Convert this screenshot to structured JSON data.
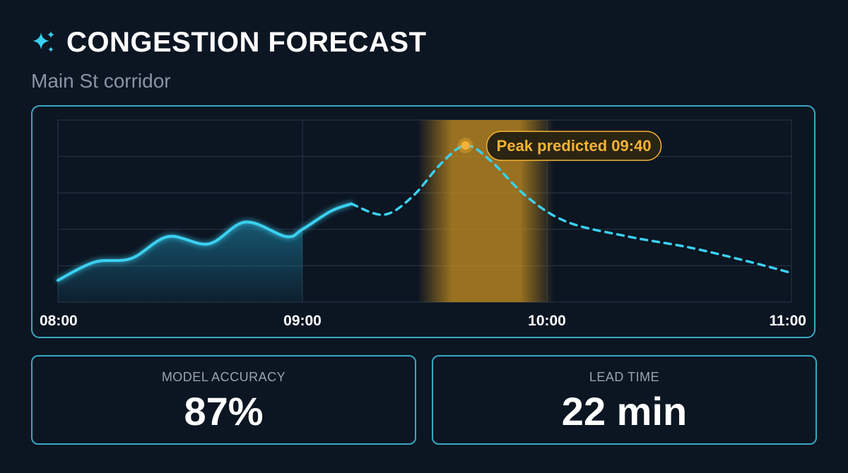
{
  "header": {
    "title": "CONGESTION FORECAST",
    "subtitle": "Main St corridor",
    "icon": "sparkle-icon"
  },
  "colors": {
    "background": "#0c1522",
    "accent": "#3ad0f0",
    "highlight": "#f5b335",
    "border": "#3aa7c4"
  },
  "chart_data": {
    "type": "line",
    "x_ticks": [
      "08:00",
      "09:00",
      "10:00",
      "11:00"
    ],
    "xlim": [
      "08:00",
      "11:00"
    ],
    "ylim": [
      0,
      5
    ],
    "grid": true,
    "series": [
      {
        "style": "solid-with-area",
        "points": [
          [
            "08:00",
            0.6
          ],
          [
            "08:09",
            1.1
          ],
          [
            "08:18",
            1.2
          ],
          [
            "08:27",
            1.8
          ],
          [
            "08:37",
            1.6
          ],
          [
            "08:46",
            2.2
          ],
          [
            "08:56",
            1.8
          ],
          [
            "09:00",
            2.0
          ],
          [
            "09:07",
            2.5
          ],
          [
            "09:12",
            2.7
          ]
        ]
      },
      {
        "style": "dashed",
        "points": [
          [
            "09:12",
            2.7
          ],
          [
            "09:20",
            2.4
          ],
          [
            "09:27",
            2.9
          ],
          [
            "09:34",
            3.8
          ],
          [
            "09:40",
            4.3
          ],
          [
            "09:46",
            3.9
          ],
          [
            "09:55",
            2.9
          ],
          [
            "10:05",
            2.2
          ],
          [
            "10:20",
            1.8
          ],
          [
            "10:35",
            1.5
          ],
          [
            "10:50",
            1.1
          ],
          [
            "11:00",
            0.8
          ]
        ]
      }
    ],
    "highlight_band": [
      "09:30",
      "10:00"
    ],
    "annotation": {
      "x": "09:40",
      "y": 4.3,
      "text": "Peak predicted 09:40"
    }
  },
  "stats": [
    {
      "label": "MODEL ACCURACY",
      "value": "87%"
    },
    {
      "label": "LEAD TIME",
      "value": "22 min"
    }
  ]
}
